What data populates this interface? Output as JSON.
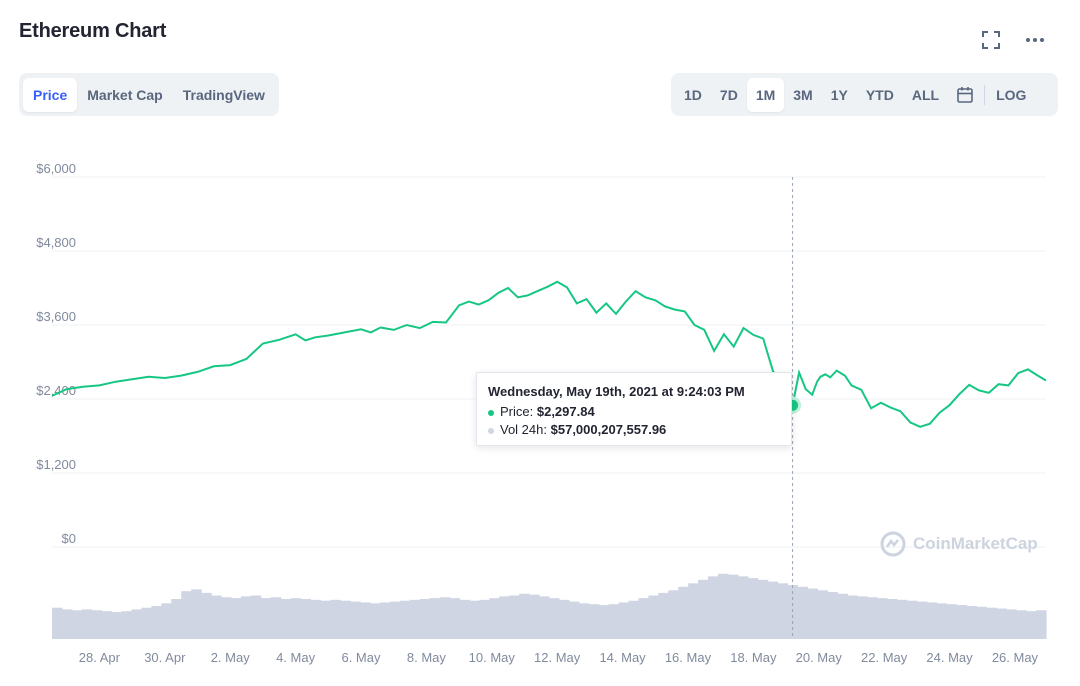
{
  "header": {
    "title": "Ethereum Chart",
    "expand_icon": "expand-icon",
    "more_icon": "more-dots-icon"
  },
  "tabs": [
    "Price",
    "Market Cap",
    "TradingView"
  ],
  "active_tab": "Price",
  "ranges": [
    "1D",
    "7D",
    "1M",
    "3M",
    "1Y",
    "YTD",
    "ALL"
  ],
  "active_range": "1M",
  "calendar_icon": "calendar-icon",
  "log_label": "LOG",
  "tooltip": {
    "title": "Wednesday, May 19th, 2021 at 9:24:03 PM",
    "price_label": "Price:",
    "price_value": "$2,297.84",
    "vol_label": "Vol 24h:",
    "vol_value": "$57,000,207,557.96"
  },
  "watermark": "CoinMarketCap",
  "colors": {
    "price_line": "#16c784",
    "volume": "#cfd5e3",
    "grid": "#eff2f5",
    "axis_text": "#808a9d",
    "accent": "#3861fb"
  },
  "chart_data": {
    "type": "line",
    "y_ticks": [
      "$6,000",
      "$4,800",
      "$3,600",
      "$2,400",
      "$1,200",
      "$0"
    ],
    "y_tick_values": [
      6000,
      4800,
      3600,
      2400,
      1200,
      0
    ],
    "ylim": [
      0,
      6000
    ],
    "x_ticks": [
      "28. Apr",
      "30. Apr",
      "2. May",
      "4. May",
      "6. May",
      "8. May",
      "10. May",
      "12. May",
      "14. May",
      "16. May",
      "18. May",
      "20. May",
      "22. May",
      "24. May",
      "26. May"
    ],
    "x_tick_days": [
      2,
      4,
      6,
      8,
      10,
      12,
      14,
      16,
      18,
      20,
      22,
      24,
      26,
      28,
      30
    ],
    "x_range_days": [
      0.55,
      30.95
    ],
    "series": [
      {
        "values_note": "x = day offset where 1 = 27 Apr",
        "x": [
          0.55,
          1.0,
          1.5,
          2.0,
          2.5,
          3.0,
          3.5,
          4.0,
          4.5,
          5.0,
          5.5,
          6.0,
          6.5,
          7.0,
          7.5,
          8.0,
          8.3,
          8.6,
          9.0,
          9.5,
          10.0,
          10.3,
          10.6,
          11.0,
          11.4,
          11.8,
          12.2,
          12.6,
          13.0,
          13.3,
          13.6,
          13.9,
          14.2,
          14.5,
          14.8,
          15.1,
          15.4,
          15.7,
          16.0,
          16.3,
          16.6,
          16.9,
          17.2,
          17.5,
          17.8,
          18.1,
          18.4,
          18.7,
          19.0,
          19.3,
          19.6,
          19.9,
          20.2,
          20.5,
          20.8,
          21.1,
          21.4,
          21.7,
          22.0,
          22.3,
          22.6,
          22.9,
          23.2,
          23.4,
          23.6,
          23.8,
          23.95,
          24.05,
          24.2,
          24.35,
          24.55,
          24.8,
          25.0,
          25.3,
          25.6,
          25.9,
          26.2,
          26.5,
          26.8,
          27.1,
          27.4,
          27.7,
          28.0,
          28.3,
          28.6,
          28.9,
          29.2,
          29.5,
          29.8,
          30.1,
          30.4,
          30.7,
          30.95
        ],
        "values": [
          2450,
          2560,
          2600,
          2620,
          2680,
          2720,
          2760,
          2740,
          2780,
          2840,
          2930,
          2950,
          3050,
          3300,
          3360,
          3450,
          3350,
          3400,
          3430,
          3480,
          3530,
          3480,
          3560,
          3520,
          3600,
          3550,
          3650,
          3640,
          3920,
          3980,
          3930,
          4000,
          4120,
          4200,
          4050,
          4080,
          4150,
          4220,
          4300,
          4210,
          3950,
          4020,
          3800,
          3950,
          3780,
          3980,
          4150,
          4050,
          4000,
          3900,
          3850,
          3820,
          3600,
          3520,
          3180,
          3450,
          3250,
          3550,
          3440,
          3380,
          2850,
          2650,
          2297.84,
          2830,
          2560,
          2470,
          2680,
          2760,
          2800,
          2750,
          2860,
          2780,
          2620,
          2550,
          2250,
          2340,
          2260,
          2200,
          2020,
          1950,
          2000,
          2180,
          2300,
          2480,
          2630,
          2540,
          2500,
          2640,
          2620,
          2820,
          2880,
          2780,
          2700
        ]
      }
    ],
    "volume_bars": [
      0.36,
      0.34,
      0.33,
      0.34,
      0.33,
      0.32,
      0.31,
      0.32,
      0.34,
      0.36,
      0.38,
      0.41,
      0.46,
      0.55,
      0.57,
      0.53,
      0.5,
      0.48,
      0.47,
      0.49,
      0.5,
      0.47,
      0.48,
      0.46,
      0.47,
      0.46,
      0.45,
      0.44,
      0.45,
      0.44,
      0.43,
      0.42,
      0.41,
      0.42,
      0.43,
      0.44,
      0.45,
      0.46,
      0.47,
      0.48,
      0.47,
      0.45,
      0.44,
      0.45,
      0.47,
      0.49,
      0.5,
      0.52,
      0.51,
      0.49,
      0.47,
      0.45,
      0.43,
      0.41,
      0.4,
      0.39,
      0.4,
      0.42,
      0.44,
      0.47,
      0.5,
      0.53,
      0.56,
      0.6,
      0.64,
      0.68,
      0.72,
      0.75,
      0.74,
      0.72,
      0.7,
      0.68,
      0.66,
      0.64,
      0.62,
      0.6,
      0.58,
      0.56,
      0.54,
      0.52,
      0.5,
      0.49,
      0.48,
      0.47,
      0.46,
      0.45,
      0.44,
      0.43,
      0.42,
      0.41,
      0.4,
      0.39,
      0.38,
      0.37,
      0.36,
      0.35,
      0.34,
      0.33,
      0.32,
      0.33
    ]
  }
}
